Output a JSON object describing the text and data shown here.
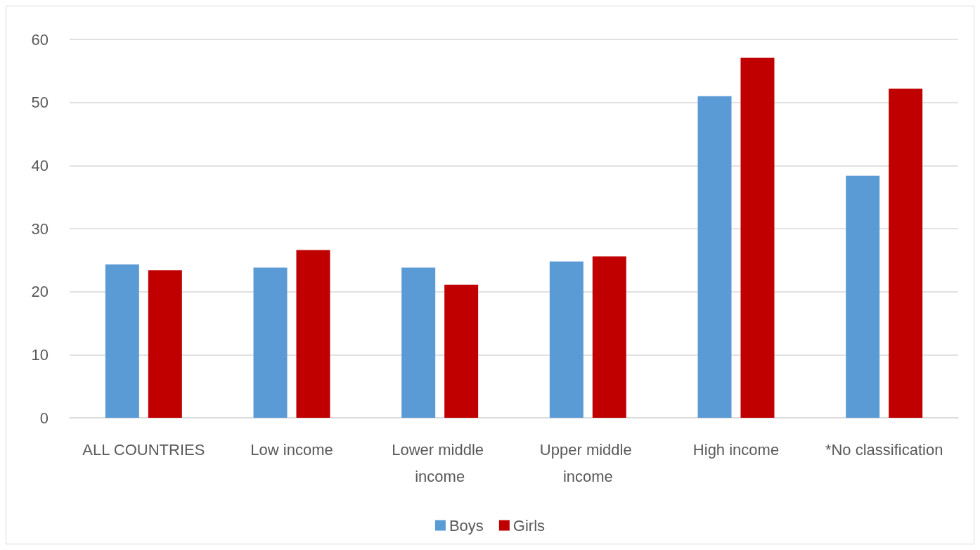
{
  "chart_data": {
    "type": "bar",
    "categories": [
      "ALL COUNTRIES",
      "Low income",
      "Lower middle income",
      "Upper middle income",
      "High income",
      "*No classification"
    ],
    "series": [
      {
        "name": "Boys",
        "color": "#5b9bd5",
        "values": [
          24.3,
          23.8,
          23.8,
          24.8,
          51.0,
          38.4
        ]
      },
      {
        "name": "Girls",
        "color": "#c00000",
        "values": [
          23.4,
          26.6,
          21.1,
          25.6,
          57.1,
          52.2
        ]
      }
    ],
    "ylim": [
      0,
      60
    ],
    "yticks": [
      0,
      10,
      20,
      30,
      40,
      50,
      60
    ],
    "grid": true,
    "legend": "bottom"
  }
}
